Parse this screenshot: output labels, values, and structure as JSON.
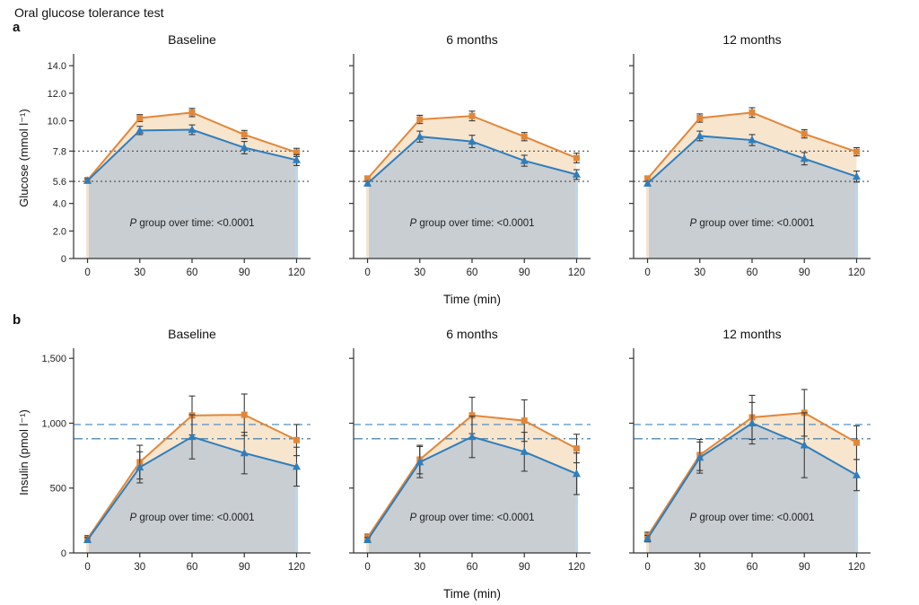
{
  "figure": {
    "title": "Oral glucose tolerance test",
    "row_a_label": "a",
    "row_b_label": "b"
  },
  "chart_data": {
    "type": "line",
    "x": [
      0,
      30,
      60,
      90,
      120
    ],
    "x_tick_labels": [
      "0",
      "30",
      "60",
      "90",
      "120"
    ],
    "xlabel": "Time (min)",
    "xlim": [
      -8,
      128
    ],
    "grid": false,
    "legend": "none",
    "colors": {
      "series_orange": "#E1873A",
      "series_orange_fill": "#F8E5CD",
      "series_blue": "#2F7EBC",
      "series_blue_fill": "#C8CED2",
      "error_bar": "#3A3A3A",
      "axis": "#333333",
      "ref_dotted": "#4D4D4D",
      "ref_dashed": "#3F88C5",
      "ref_dashdot": "#2D6E9E",
      "edge_left": "#F2E3D1",
      "edge_right": "#BCD6EA"
    },
    "rows": [
      {
        "id": "glucose",
        "ylabel": "Glucose (mmol l⁻¹)",
        "ylim": [
          0,
          14.6
        ],
        "yticks": [
          0,
          2,
          4,
          5.6,
          7.8,
          10,
          12,
          14
        ],
        "ytick_labels": [
          "0",
          "2.0",
          "4.0",
          "5.6",
          "7.8",
          "10.0",
          "12.0",
          "14.0"
        ],
        "ref_lines": [
          {
            "y": 7.8,
            "style": "dotted",
            "color_key": "ref_dotted"
          },
          {
            "y": 5.6,
            "style": "dotted",
            "color_key": "ref_dotted"
          }
        ],
        "annotation": {
          "p": "P",
          "text": " group over time: <0.0001"
        },
        "panels": [
          {
            "title": "Baseline",
            "series": [
              {
                "name": "orange-squares",
                "marker": "square",
                "values": [
                  5.7,
                  10.2,
                  10.6,
                  9.0,
                  7.7
                ],
                "errors": [
                  0.15,
                  0.25,
                  0.3,
                  0.3,
                  0.3
                ]
              },
              {
                "name": "blue-triangles",
                "marker": "triangle",
                "values": [
                  5.65,
                  9.3,
                  9.35,
                  8.05,
                  7.15
                ],
                "errors": [
                  0.15,
                  0.3,
                  0.35,
                  0.45,
                  0.4
                ]
              }
            ]
          },
          {
            "title": "6 months",
            "series": [
              {
                "name": "orange-squares",
                "marker": "square",
                "values": [
                  5.8,
                  10.1,
                  10.35,
                  8.85,
                  7.3
                ],
                "errors": [
                  0.2,
                  0.3,
                  0.35,
                  0.3,
                  0.35
                ]
              },
              {
                "name": "blue-triangles",
                "marker": "triangle",
                "values": [
                  5.45,
                  8.85,
                  8.5,
                  7.1,
                  6.1
                ],
                "errors": [
                  0.15,
                  0.4,
                  0.45,
                  0.4,
                  0.35
                ]
              }
            ]
          },
          {
            "title": "12 months",
            "series": [
              {
                "name": "orange-squares",
                "marker": "square",
                "values": [
                  5.8,
                  10.2,
                  10.6,
                  9.05,
                  7.75
                ],
                "errors": [
                  0.2,
                  0.3,
                  0.35,
                  0.3,
                  0.3
                ]
              },
              {
                "name": "blue-triangles",
                "marker": "triangle",
                "values": [
                  5.45,
                  8.9,
                  8.6,
                  7.25,
                  5.95
                ],
                "errors": [
                  0.15,
                  0.35,
                  0.4,
                  0.45,
                  0.4
                ]
              }
            ]
          }
        ]
      },
      {
        "id": "insulin",
        "ylabel": "Insulin (pmol l⁻¹)",
        "ylim": [
          0,
          1550
        ],
        "yticks": [
          0,
          500,
          1000,
          1500
        ],
        "ytick_labels": [
          "0",
          "500",
          "1,000",
          "1,500"
        ],
        "ref_lines": [
          {
            "y": 990,
            "style": "dashed",
            "color_key": "ref_dashed"
          },
          {
            "y": 880,
            "style": "dashdot",
            "color_key": "ref_dashdot"
          }
        ],
        "annotation": {
          "p": "P",
          "text": " group over time: <0.0001"
        },
        "panels": [
          {
            "title": "Baseline",
            "series": [
              {
                "name": "orange-squares",
                "marker": "square",
                "values": [
                  110,
                  700,
                  1060,
                  1065,
                  870
                ],
                "errors": [
                  25,
                  130,
                  150,
                  160,
                  120
                ]
              },
              {
                "name": "blue-triangles",
                "marker": "triangle",
                "values": [
                  100,
                  660,
                  895,
                  770,
                  665
                ],
                "errors": [
                  20,
                  120,
                  170,
                  160,
                  150
                ]
              }
            ]
          },
          {
            "title": "6 months",
            "series": [
              {
                "name": "orange-squares",
                "marker": "square",
                "values": [
                  120,
                  720,
                  1060,
                  1020,
                  805
                ],
                "errors": [
                  25,
                  110,
                  140,
                  160,
                  110
                ]
              },
              {
                "name": "blue-triangles",
                "marker": "triangle",
                "values": [
                  100,
                  700,
                  895,
                  780,
                  610
                ],
                "errors": [
                  20,
                  120,
                  160,
                  150,
                  160
                ]
              }
            ]
          },
          {
            "title": "12 months",
            "series": [
              {
                "name": "orange-squares",
                "marker": "square",
                "values": [
                  130,
                  755,
                  1045,
                  1080,
                  850
                ],
                "errors": [
                  30,
                  120,
                  170,
                  180,
                  130
                ]
              },
              {
                "name": "blue-triangles",
                "marker": "triangle",
                "values": [
                  110,
                  735,
                  1000,
                  830,
                  600
                ],
                "errors": [
                  25,
                  120,
                  160,
                  250,
                  120
                ]
              }
            ]
          }
        ]
      }
    ]
  }
}
